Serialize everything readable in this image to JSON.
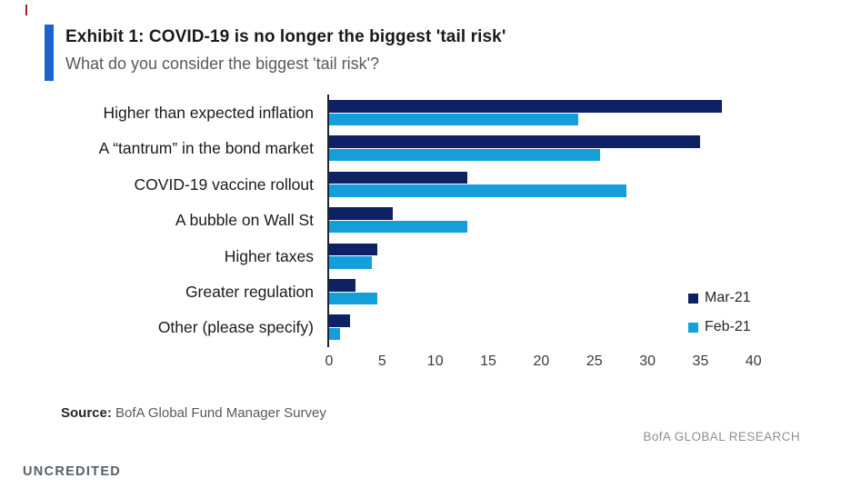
{
  "page": {
    "exhibit_title": "Exhibit 1: COVID-19 is no longer the biggest 'tail risk'",
    "subtitle": "What do you consider the biggest 'tail risk'?",
    "source_label": "Source:",
    "source_text": " BofA Global Fund Manager Survey",
    "branding": "BofA GLOBAL RESEARCH",
    "credit": "UNCREDITED"
  },
  "colors": {
    "accent_bar": "#1b63c9",
    "mar21_bar": "#0d2164",
    "feb21_bar": "#149fdb",
    "title_text": "#1a1a1a",
    "subtitle_text": "#595959",
    "muted_text": "#8f8f8f"
  },
  "chart_data": {
    "type": "bar",
    "orientation": "horizontal",
    "title": "What do you consider the biggest 'tail risk'?",
    "categories": [
      "Higher than expected inflation",
      "A “tantrum” in the bond market",
      "COVID-19 vaccine rollout",
      "A bubble on Wall St",
      "Higher taxes",
      "Greater regulation",
      "Other (please specify)"
    ],
    "series": [
      {
        "name": "Mar-21",
        "color": "#0d2164",
        "values": [
          37,
          35,
          13,
          6,
          4.5,
          2.5,
          2
        ]
      },
      {
        "name": "Feb-21",
        "color": "#149fdb",
        "values": [
          23.5,
          25.5,
          28,
          13,
          4,
          4.5,
          1
        ]
      }
    ],
    "xlim": [
      0,
      40
    ],
    "x_ticks": [
      0,
      5,
      10,
      15,
      20,
      25,
      30,
      35,
      40
    ],
    "xlabel": "",
    "ylabel": "",
    "grid": false,
    "legend_position": "middle-right"
  }
}
